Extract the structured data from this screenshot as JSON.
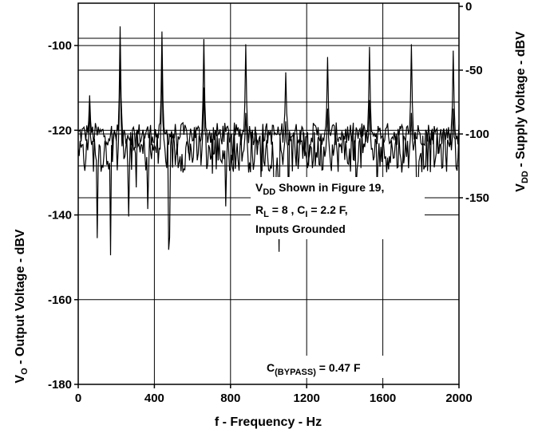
{
  "chart_data": {
    "type": "line",
    "xlabel": "f - Frequency - Hz",
    "ylabel_left": "V",
    "ylabel_left_sub": "O",
    "ylabel_left_rest": " - Output Voltage - dBV",
    "ylabel_right": "V",
    "ylabel_right_sub": "DD",
    "ylabel_right_rest": " - Supply Voltage - dBV",
    "xlim": [
      0,
      2000
    ],
    "x_ticks": [
      0,
      400,
      800,
      1200,
      1600,
      2000
    ],
    "x_tick_labels": [
      "0",
      "400",
      "800",
      "1200",
      "1600",
      "2000"
    ],
    "ylim_left": [
      -180,
      -90
    ],
    "left_ticks": [
      -180,
      -160,
      -140,
      -120,
      -100
    ],
    "left_tick_labels": [
      "-180",
      "-160",
      "-140",
      "-120",
      "-100"
    ],
    "ylim_right": [
      0,
      -175
    ],
    "right_ticks": [
      0,
      -50,
      -100,
      -150
    ],
    "right_tick_labels": [
      "0",
      "-50",
      "-100",
      "-150"
    ],
    "grid": true,
    "series": [
      {
        "name": "VDD",
        "axis": "right",
        "noise_floor": -100,
        "peaks": [
          {
            "x": 60,
            "y": -70
          },
          {
            "x": 220,
            "y": -16
          },
          {
            "x": 440,
            "y": -20
          },
          {
            "x": 660,
            "y": -26
          },
          {
            "x": 880,
            "y": -30
          },
          {
            "x": 1090,
            "y": -52
          },
          {
            "x": 1310,
            "y": -40
          },
          {
            "x": 1530,
            "y": -32
          },
          {
            "x": 1750,
            "y": -30
          },
          {
            "x": 1970,
            "y": -35
          }
        ]
      },
      {
        "name": "VO",
        "axis": "left",
        "noise_floor": -125,
        "peaks": [
          {
            "x": 60,
            "y": -115
          },
          {
            "x": 220,
            "y": -102
          },
          {
            "x": 440,
            "y": -104
          },
          {
            "x": 660,
            "y": -110
          },
          {
            "x": 880,
            "y": -116
          },
          {
            "x": 1090,
            "y": -118
          },
          {
            "x": 1310,
            "y": -115
          },
          {
            "x": 1530,
            "y": -113
          },
          {
            "x": 1750,
            "y": -116
          },
          {
            "x": 1970,
            "y": -115
          }
        ]
      }
    ],
    "annotations": {
      "vdd_line1_main": "V",
      "vdd_line1_sub": "DD",
      "vdd_line1_rest": " Shown in Figure 19,",
      "line2_a": "R",
      "line2_a_sub": "L",
      "line2_b": " = 8    , C",
      "line2_b_sub": "I",
      "line2_c": " = 2.2    F,",
      "line3": "Inputs Grounded",
      "bypass_main": "C",
      "bypass_sub": "(BYPASS)",
      "bypass_rest": " = 0.47    F"
    }
  }
}
